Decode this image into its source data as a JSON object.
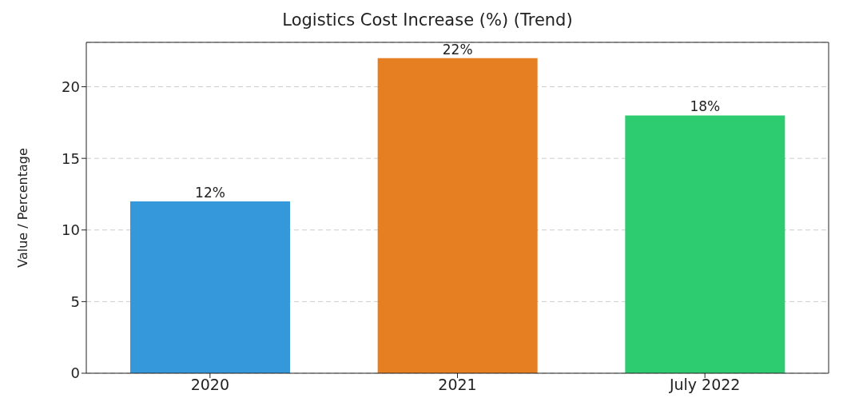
{
  "chart_data": {
    "type": "bar",
    "title": "Logistics Cost Increase (%) (Trend)",
    "ylabel": "Value / Percentage",
    "categories": [
      "2020",
      "2021",
      "July 2022"
    ],
    "values": [
      12,
      22,
      18
    ],
    "colors": [
      "#3498db",
      "#e67e22",
      "#2ecc71"
    ],
    "value_labels": [
      "12%",
      "22%",
      "18%"
    ],
    "ylim": [
      0,
      23.1
    ],
    "yticks": [
      0,
      5,
      10,
      15,
      20
    ],
    "grid": "y"
  }
}
